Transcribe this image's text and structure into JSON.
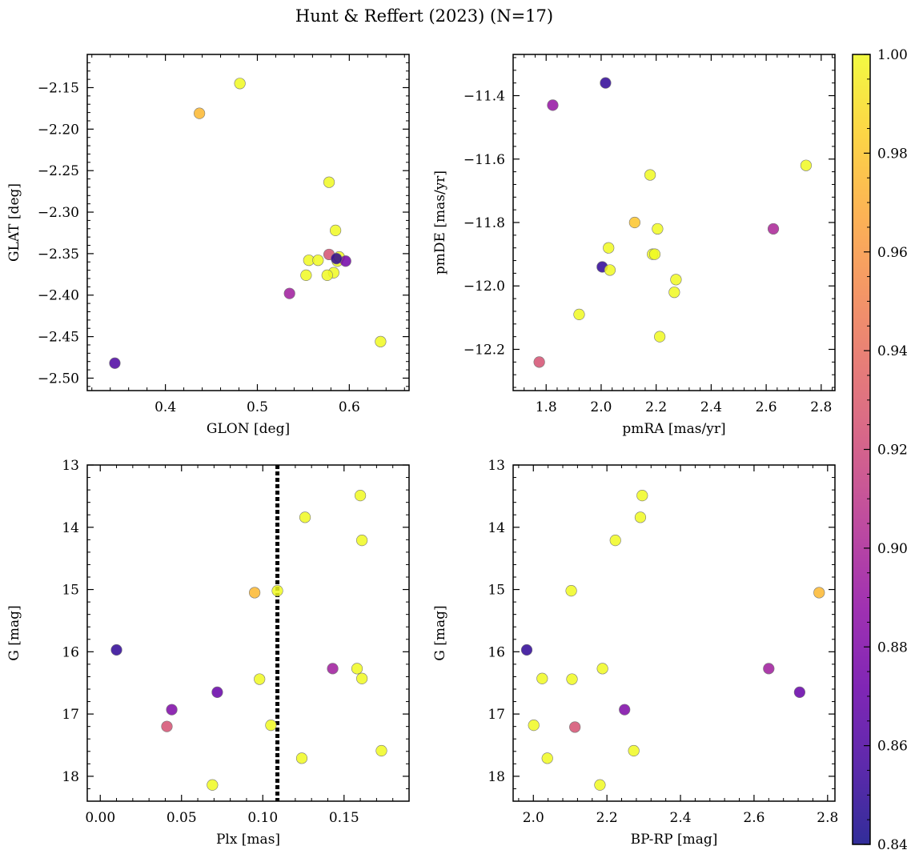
{
  "figure": {
    "title": "Hunt & Reffert (2023) (N=17)"
  },
  "colorbar": {
    "colormap": "plasma",
    "vmin": 0.84,
    "vmax": 1.0,
    "ticks": [
      0.84,
      0.86,
      0.88,
      0.9,
      0.92,
      0.94,
      0.96,
      0.98,
      1.0
    ],
    "tick_labels": [
      "0.84",
      "0.86",
      "0.88",
      "0.90",
      "0.92",
      "0.94",
      "0.96",
      "0.98",
      "1.00"
    ]
  },
  "chart_data": [
    {
      "type": "scatter",
      "id": "glon-glat",
      "xlabel": "GLON [deg]",
      "ylabel": "GLAT [deg]",
      "xlim": [
        0.315,
        0.665
      ],
      "ylim": [
        -2.515,
        -2.11
      ],
      "y_inverted": false,
      "xticks": [
        0.4,
        0.5,
        0.6
      ],
      "xtick_labels": [
        "0.4",
        "0.5",
        "0.6"
      ],
      "yticks": [
        -2.5,
        -2.45,
        -2.4,
        -2.35,
        -2.3,
        -2.25,
        -2.2,
        -2.15
      ],
      "ytick_labels": [
        "−2.50",
        "−2.45",
        "−2.40",
        "−2.35",
        "−2.30",
        "−2.25",
        "−2.20",
        "−2.15"
      ],
      "x": [
        0.481,
        0.437,
        0.578,
        0.585,
        0.578,
        0.556,
        0.566,
        0.583,
        0.553,
        0.576,
        0.587,
        0.589,
        0.596,
        0.535,
        0.634,
        0.345,
        0.586
      ],
      "y": [
        -2.145,
        -2.181,
        -2.264,
        -2.322,
        -2.351,
        -2.358,
        -2.358,
        -2.373,
        -2.376,
        -2.376,
        -2.359,
        -2.354,
        -2.359,
        -2.398,
        -2.456,
        -2.482,
        -2.356
      ],
      "c": [
        1.0,
        0.975,
        1.0,
        1.0,
        0.925,
        1.0,
        1.0,
        1.0,
        1.0,
        1.0,
        1.0,
        1.0,
        0.875,
        0.895,
        1.0,
        0.86,
        0.85
      ]
    },
    {
      "type": "scatter",
      "id": "pmra-pmde",
      "xlabel": "pmRA [mas/yr]",
      "ylabel": "pmDE [mas/yr]",
      "xlim": [
        1.68,
        2.85
      ],
      "ylim": [
        -12.33,
        -11.27
      ],
      "y_inverted": false,
      "xticks": [
        1.8,
        2.0,
        2.2,
        2.4,
        2.6,
        2.8
      ],
      "xtick_labels": [
        "1.8",
        "2.0",
        "2.2",
        "2.4",
        "2.6",
        "2.8"
      ],
      "yticks": [
        -12.2,
        -12.0,
        -11.8,
        -11.6,
        -11.4
      ],
      "ytick_labels": [
        "−12.2",
        "−12.0",
        "−11.8",
        "−11.6",
        "−11.4"
      ],
      "x": [
        2.016,
        1.824,
        2.745,
        2.178,
        2.122,
        2.205,
        2.626,
        2.027,
        2.187,
        2.195,
        2.004,
        2.032,
        2.272,
        1.92,
        2.266,
        2.213,
        1.775
      ],
      "y": [
        -11.36,
        -11.43,
        -11.62,
        -11.65,
        -11.8,
        -11.82,
        -11.82,
        -11.88,
        -11.9,
        -11.9,
        -11.94,
        -11.95,
        -11.98,
        -12.09,
        -12.02,
        -12.16,
        -12.24
      ],
      "c": [
        0.85,
        0.89,
        1.0,
        1.0,
        0.98,
        1.0,
        0.9,
        1.0,
        1.0,
        1.0,
        0.85,
        1.0,
        1.0,
        1.0,
        1.0,
        1.0,
        0.925
      ]
    },
    {
      "type": "scatter",
      "id": "plx-g",
      "xlabel": "Plx [mas]",
      "ylabel": "G [mag]",
      "xlim": [
        -0.008,
        0.19
      ],
      "ylim": [
        18.4,
        13.0
      ],
      "y_inverted": true,
      "vline": {
        "x": 0.109,
        "style": "dotted",
        "color": "#000000"
      },
      "xticks": [
        0.0,
        0.05,
        0.1,
        0.15
      ],
      "xtick_labels": [
        "0.00",
        "0.05",
        "0.10",
        "0.15"
      ],
      "yticks": [
        13,
        14,
        15,
        16,
        17,
        18
      ],
      "ytick_labels": [
        "13",
        "14",
        "15",
        "16",
        "17",
        "18"
      ],
      "x": [
        0.16,
        0.126,
        0.161,
        0.095,
        0.109,
        0.01,
        0.143,
        0.158,
        0.161,
        0.098,
        0.072,
        0.044,
        0.041,
        0.105,
        0.124,
        0.173,
        0.069
      ],
      "y": [
        13.49,
        13.84,
        14.21,
        15.05,
        15.02,
        15.97,
        16.27,
        16.27,
        16.43,
        16.44,
        16.65,
        16.93,
        17.2,
        17.18,
        17.71,
        17.59,
        18.14
      ],
      "c": [
        1.0,
        1.0,
        1.0,
        0.975,
        1.0,
        0.85,
        0.895,
        1.0,
        1.0,
        1.0,
        0.87,
        0.88,
        0.925,
        1.0,
        1.0,
        1.0,
        1.0
      ]
    },
    {
      "type": "scatter",
      "id": "bprp-g",
      "xlabel": "BP-RP [mag]",
      "ylabel": "G [mag]",
      "xlim": [
        1.945,
        2.82
      ],
      "ylim": [
        18.4,
        13.0
      ],
      "y_inverted": true,
      "xticks": [
        2.0,
        2.2,
        2.4,
        2.6,
        2.8
      ],
      "xtick_labels": [
        "2.0",
        "2.2",
        "2.4",
        "2.6",
        "2.8"
      ],
      "yticks": [
        13,
        14,
        15,
        16,
        17,
        18
      ],
      "ytick_labels": [
        "13",
        "14",
        "15",
        "16",
        "17",
        "18"
      ],
      "x": [
        2.296,
        2.291,
        2.223,
        2.103,
        2.777,
        1.982,
        2.64,
        2.188,
        2.024,
        2.105,
        2.724,
        2.248,
        2.113,
        2.001,
        2.038,
        2.273,
        2.181
      ],
      "y": [
        13.49,
        13.84,
        14.21,
        15.02,
        15.05,
        15.97,
        16.27,
        16.27,
        16.43,
        16.44,
        16.65,
        16.93,
        17.21,
        17.18,
        17.71,
        17.59,
        18.14
      ],
      "c": [
        1.0,
        1.0,
        1.0,
        1.0,
        0.975,
        0.85,
        0.895,
        1.0,
        1.0,
        1.0,
        0.87,
        0.88,
        0.925,
        1.0,
        1.0,
        1.0,
        1.0
      ]
    }
  ]
}
